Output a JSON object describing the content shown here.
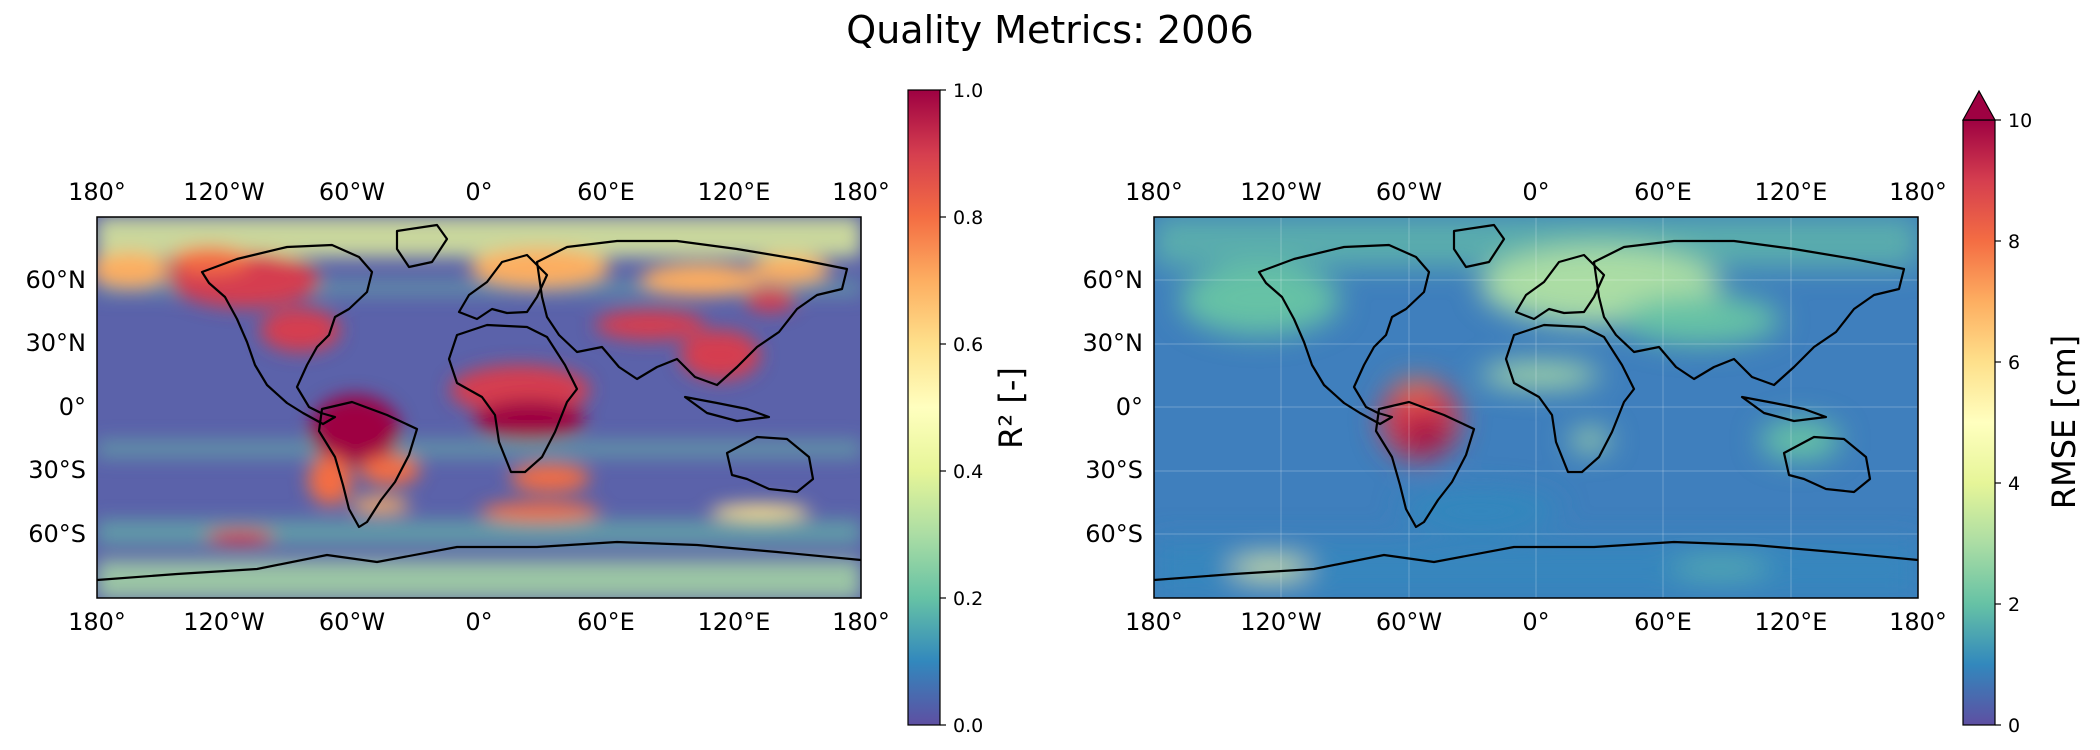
{
  "title": "Quality Metrics: 2006",
  "maps": [
    {
      "id": "r2",
      "metric_label": "R² [-]",
      "lon_ticks": [
        "180°",
        "120°W",
        "60°W",
        "0°",
        "60°E",
        "120°E",
        "180°"
      ],
      "lat_ticks": [
        "60°N",
        "30°N",
        "0°",
        "30°S",
        "60°S"
      ],
      "colorbar": {
        "min": 0.0,
        "max": 1.0,
        "ticks": [
          "0.0",
          "0.2",
          "0.4",
          "0.6",
          "0.8",
          "1.0"
        ],
        "extend_max": false,
        "colormap": [
          "#5e4fa2",
          "#3288bd",
          "#66c2a5",
          "#abdda4",
          "#e6f598",
          "#ffffbf",
          "#fee08b",
          "#fdae61",
          "#f46d43",
          "#d53e4f",
          "#9e0142"
        ]
      },
      "background_color": "#5b62aa"
    },
    {
      "id": "rmse",
      "metric_label": "RMSE [cm]",
      "lon_ticks": [
        "180°",
        "120°W",
        "60°W",
        "0°",
        "60°E",
        "120°E",
        "180°"
      ],
      "lat_ticks": [
        "60°N",
        "30°N",
        "0°",
        "30°S",
        "60°S"
      ],
      "colorbar": {
        "min": 0,
        "max": 10,
        "ticks": [
          "0",
          "2",
          "4",
          "6",
          "8",
          "10"
        ],
        "extend_max": true,
        "colormap": [
          "#5e4fa2",
          "#3288bd",
          "#66c2a5",
          "#abdda4",
          "#e6f598",
          "#ffffbf",
          "#fee08b",
          "#fdae61",
          "#f46d43",
          "#d53e4f",
          "#9e0142"
        ]
      },
      "background_color": "#3f7fbd"
    }
  ]
}
